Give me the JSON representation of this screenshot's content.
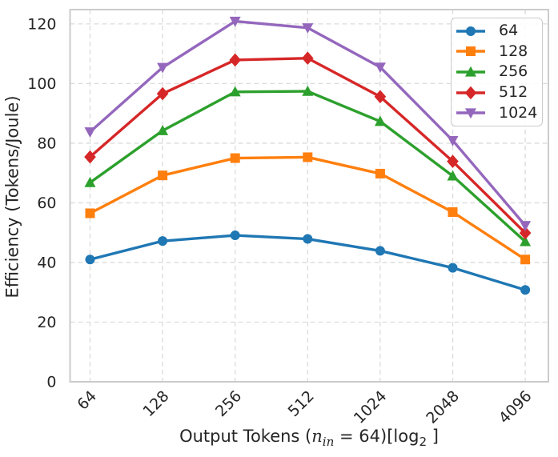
{
  "chart_data": {
    "type": "line",
    "title": "",
    "xlabel": "Output Tokens (n_in = 64)[log2 ]",
    "xlabel_parts": {
      "prefix": "Output Tokens (",
      "var": "n",
      "var_sub": "in",
      "mid": " = 64)[log",
      "log_sub": "2",
      "suffix": " ]"
    },
    "ylabel": "Efficiency (Tokens/Joule)",
    "categories": [
      "64",
      "128",
      "256",
      "512",
      "1024",
      "2048",
      "4096"
    ],
    "x_axis_note": "log2-spaced token counts",
    "yticks": [
      0,
      20,
      40,
      60,
      80,
      100,
      120
    ],
    "ylim": [
      0,
      124.8
    ],
    "grid": "both-dashed",
    "legend_position": "upper-right",
    "series": [
      {
        "name": "64",
        "color": "#1f77b4",
        "marker": "circle",
        "values": [
          41.0,
          47.2,
          49.1,
          47.9,
          43.9,
          38.2,
          30.8
        ]
      },
      {
        "name": "128",
        "color": "#ff7f0e",
        "marker": "square",
        "values": [
          56.5,
          69.2,
          75.0,
          75.3,
          69.8,
          56.9,
          41.0
        ]
      },
      {
        "name": "256",
        "color": "#2ca02c",
        "marker": "triangle-up",
        "values": [
          66.8,
          84.2,
          97.2,
          97.4,
          87.3,
          69.0,
          47.0
        ]
      },
      {
        "name": "512",
        "color": "#d62728",
        "marker": "diamond",
        "values": [
          75.4,
          96.6,
          107.9,
          108.5,
          95.6,
          73.9,
          49.9
        ]
      },
      {
        "name": "1024",
        "color": "#9467bd",
        "marker": "triangle-down",
        "values": [
          83.8,
          105.4,
          120.9,
          118.7,
          105.5,
          80.9,
          52.4
        ]
      }
    ],
    "styles": {
      "grid_color": "#dcdcdc",
      "spine_color": "#c6c6c6",
      "tick_label_color": "#262626",
      "background": "#ffffff",
      "legend_border": "#cbcbcb"
    }
  }
}
